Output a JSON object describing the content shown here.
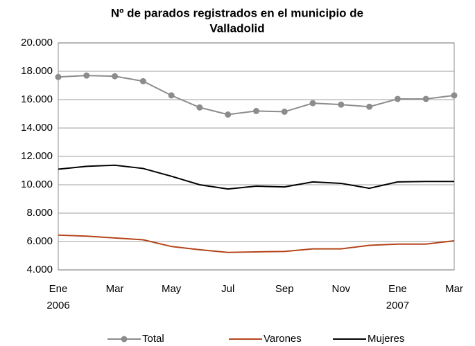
{
  "chart_data": {
    "type": "line",
    "title": [
      "Nº de parados registrados en el municipio de",
      "Valladolid"
    ],
    "categories": [
      "Ene",
      null,
      "Mar",
      null,
      "May",
      null,
      "Jul",
      null,
      "Sep",
      null,
      "Nov",
      null,
      "Ene",
      null,
      "Mar"
    ],
    "year_labels": [
      "2006",
      null,
      null,
      null,
      null,
      null,
      null,
      null,
      null,
      null,
      null,
      null,
      "2007",
      null,
      null
    ],
    "series": [
      {
        "name": "Total",
        "color": "#8c8c8c",
        "marker": true,
        "values": [
          17600,
          17700,
          17650,
          17300,
          16300,
          15450,
          14950,
          15200,
          15150,
          15750,
          15650,
          15500,
          16050,
          16050,
          16300
        ]
      },
      {
        "name": "Varones",
        "color": "#b5441a",
        "marker": false,
        "values": [
          6450,
          6380,
          6250,
          6120,
          5650,
          5420,
          5230,
          5270,
          5300,
          5480,
          5480,
          5730,
          5820,
          5820,
          6050
        ]
      },
      {
        "name": "Mujeres",
        "color": "#000000",
        "marker": false,
        "values": [
          11100,
          11300,
          11380,
          11150,
          10600,
          10000,
          9700,
          9900,
          9850,
          10200,
          10100,
          9750,
          10200,
          10230,
          10230
        ]
      }
    ],
    "ylim": [
      4000,
      20000
    ],
    "yticks": [
      {
        "value": 4000,
        "label": "4.000"
      },
      {
        "value": 6000,
        "label": "6.000"
      },
      {
        "value": 8000,
        "label": "8.000"
      },
      {
        "value": 10000,
        "label": "10.000"
      },
      {
        "value": 12000,
        "label": "12.000"
      },
      {
        "value": 14000,
        "label": "14.000"
      },
      {
        "value": 16000,
        "label": "16.000"
      },
      {
        "value": 18000,
        "label": "18.000"
      },
      {
        "value": 20000,
        "label": "20.000"
      }
    ],
    "grid": true,
    "legend": "bottom"
  }
}
